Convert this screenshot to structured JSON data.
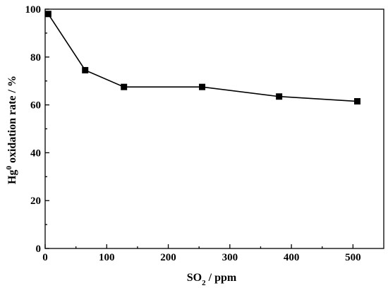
{
  "chart_data": {
    "type": "line",
    "title": "",
    "xlabel": {
      "main": "SO",
      "sub": "2",
      "rest": " / ppm"
    },
    "ylabel": {
      "main": "Hg",
      "sup": "0",
      "rest": " oxidation rate / %"
    },
    "xlim": [
      0,
      550
    ],
    "ylim": [
      0,
      100
    ],
    "xticks": [
      0,
      100,
      200,
      300,
      400,
      500
    ],
    "yticks": [
      0,
      20,
      40,
      60,
      80,
      100
    ],
    "grid": false,
    "legend": "none",
    "series": [
      {
        "x": [
          5,
          65,
          128,
          255,
          380,
          507
        ],
        "y": [
          98.0,
          74.5,
          67.5,
          67.5,
          63.5,
          61.5
        ]
      }
    ]
  }
}
